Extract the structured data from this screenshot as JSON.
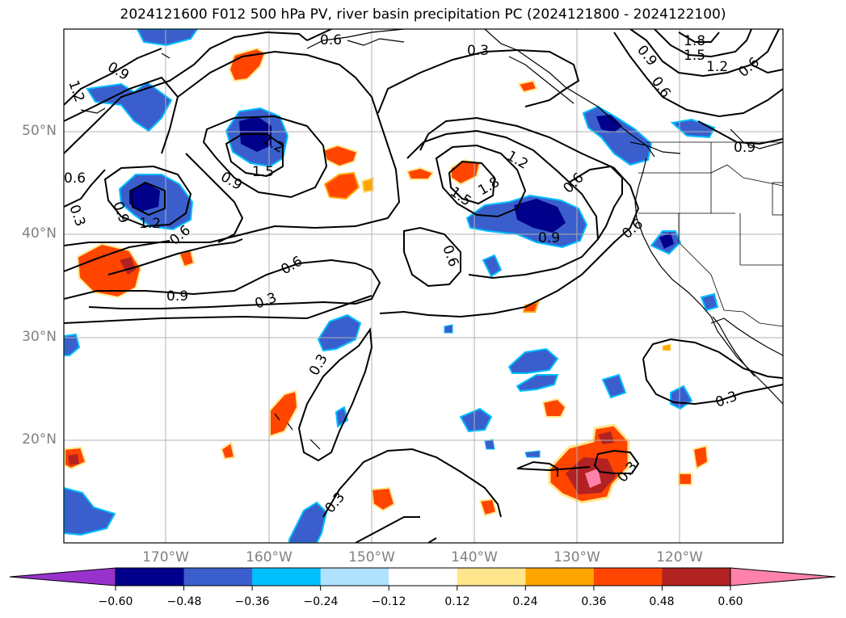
{
  "title": "2024121600 F012 500 hPa PV, river basin precipitation PC (2024121800 - 2024122100)",
  "lat_labels": [
    "50°N",
    "40°N",
    "30°N",
    "20°N"
  ],
  "lon_labels": [
    "170°W",
    "160°W",
    "150°W",
    "140°W",
    "130°W",
    "120°W"
  ],
  "contour_labels": [
    "0.6",
    "0.9",
    "1.2",
    "0.9",
    "0.6",
    "1.8",
    "1.5",
    "1.2",
    "0.6",
    "0.9",
    "1.2",
    "1.5",
    "0.9",
    "0.6",
    "0.3",
    "0.9",
    "1.2",
    "0.6",
    "0.3",
    "0.9",
    "0.6",
    "0.3",
    "1.5",
    "1.8",
    "1.2",
    "0.6",
    "0.9",
    "0.6",
    "0.6",
    "0.3",
    "0.3",
    "0.3",
    "0.3",
    "0.3",
    "0.9"
  ],
  "colorbar": {
    "ticks": [
      "−0.60",
      "−0.48",
      "−0.36",
      "−0.24",
      "−0.12",
      "0.12",
      "0.24",
      "0.36",
      "0.48",
      "0.60"
    ],
    "colors": [
      "#9932cc",
      "#00008b",
      "#3a5fcd",
      "#00bfff",
      "#b0e2ff",
      "#ffffff",
      "#ffe68c",
      "#ffa500",
      "#ff4500",
      "#b22222",
      "#ff82ab"
    ]
  }
}
